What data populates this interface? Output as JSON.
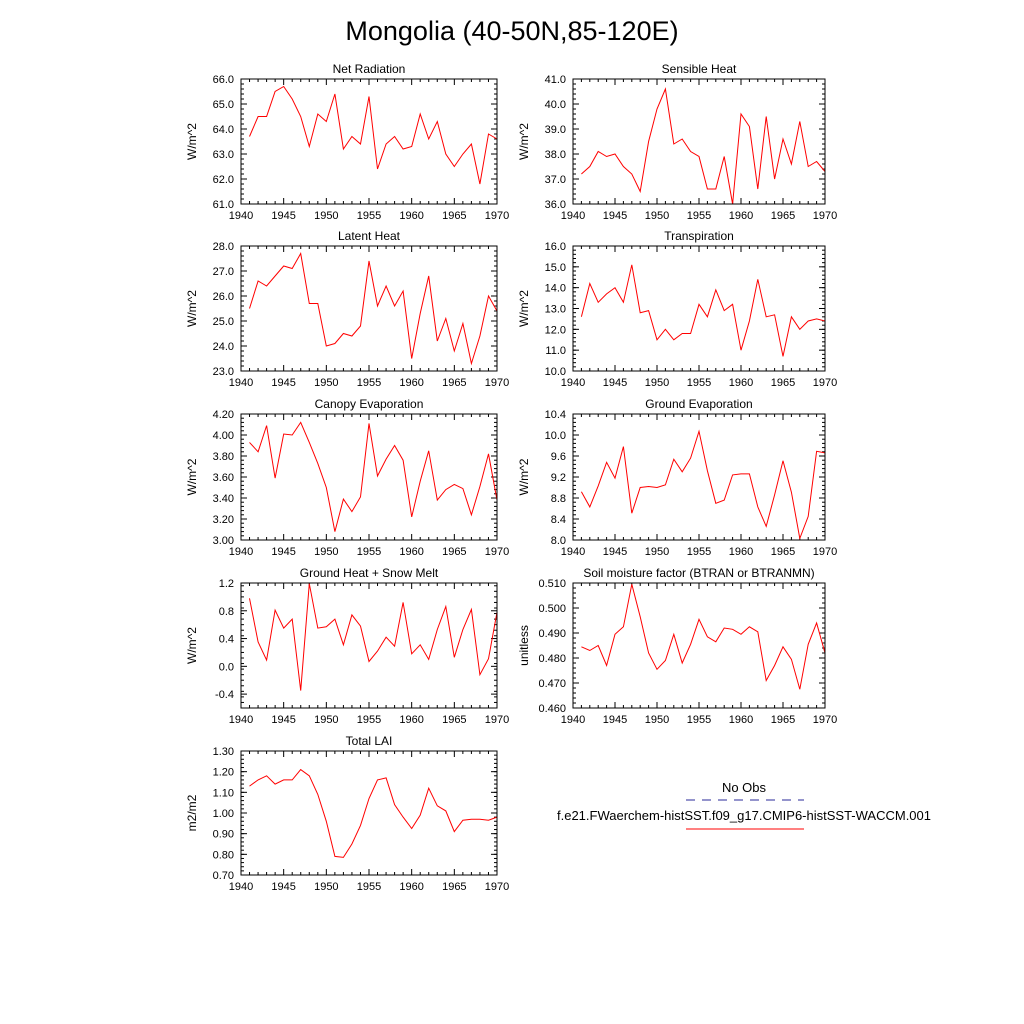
{
  "figure": {
    "title": "Mongolia (40-50N,85-120E)"
  },
  "legend": {
    "obs_label": "No Obs",
    "model_label": "f.e21.FWaerchem-histSST.f09_g17.CMIP6-histSST-WACCM.001",
    "obs_color": "#2a2a9a",
    "model_color": "#ff0000"
  },
  "chart_data": [
    {
      "type": "line",
      "title": "Net Radiation",
      "ylabel": "W/m^2",
      "xlim": [
        1940,
        1970
      ],
      "ylim": [
        61.0,
        66.0
      ],
      "xticks": [
        1940,
        1945,
        1950,
        1955,
        1960,
        1965,
        1970
      ],
      "yticks": [
        61.0,
        62.0,
        63.0,
        64.0,
        65.0,
        66.0
      ],
      "ytick_labels": [
        "61.0",
        "62.0",
        "63.0",
        "64.0",
        "65.0",
        "66.0"
      ],
      "minor_y": 0.2,
      "series": [
        {
          "color": "#ff0000",
          "x": [
            1941,
            1942,
            1943,
            1944,
            1945,
            1946,
            1947,
            1948,
            1949,
            1950,
            1951,
            1952,
            1953,
            1954,
            1955,
            1956,
            1957,
            1958,
            1959,
            1960,
            1961,
            1962,
            1963,
            1964,
            1965,
            1966,
            1967,
            1968,
            1969,
            1970
          ],
          "values": [
            63.7,
            64.5,
            64.5,
            65.5,
            65.7,
            65.2,
            64.5,
            63.3,
            64.6,
            64.3,
            65.4,
            63.2,
            63.7,
            63.4,
            65.3,
            62.4,
            63.4,
            63.7,
            63.2,
            63.3,
            64.6,
            63.6,
            64.3,
            63.0,
            62.5,
            63.0,
            63.4,
            61.8,
            63.8,
            63.6
          ]
        }
      ]
    },
    {
      "type": "line",
      "title": "Sensible Heat",
      "ylabel": "W/m^2",
      "xlim": [
        1940,
        1970
      ],
      "ylim": [
        36.0,
        41.0
      ],
      "xticks": [
        1940,
        1945,
        1950,
        1955,
        1960,
        1965,
        1970
      ],
      "yticks": [
        36.0,
        37.0,
        38.0,
        39.0,
        40.0,
        41.0
      ],
      "ytick_labels": [
        "36.0",
        "37.0",
        "38.0",
        "39.0",
        "40.0",
        "41.0"
      ],
      "minor_y": 0.2,
      "series": [
        {
          "color": "#ff0000",
          "x": [
            1941,
            1942,
            1943,
            1944,
            1945,
            1946,
            1947,
            1948,
            1949,
            1950,
            1951,
            1952,
            1953,
            1954,
            1955,
            1956,
            1957,
            1958,
            1959,
            1960,
            1961,
            1962,
            1963,
            1964,
            1965,
            1966,
            1967,
            1968,
            1969,
            1970
          ],
          "values": [
            37.2,
            37.5,
            38.1,
            37.9,
            38.0,
            37.5,
            37.2,
            36.5,
            38.5,
            39.8,
            40.6,
            38.4,
            38.6,
            38.1,
            37.9,
            36.6,
            36.6,
            37.9,
            36.0,
            39.6,
            39.1,
            36.6,
            39.5,
            37.0,
            38.6,
            37.6,
            39.3,
            37.5,
            37.7,
            37.3
          ]
        }
      ]
    },
    {
      "type": "line",
      "title": "Latent Heat",
      "ylabel": "W/m^2",
      "xlim": [
        1940,
        1970
      ],
      "ylim": [
        23.0,
        28.0
      ],
      "xticks": [
        1940,
        1945,
        1950,
        1955,
        1960,
        1965,
        1970
      ],
      "yticks": [
        23.0,
        24.0,
        25.0,
        26.0,
        27.0,
        28.0
      ],
      "ytick_labels": [
        "23.0",
        "24.0",
        "25.0",
        "26.0",
        "27.0",
        "28.0"
      ],
      "minor_y": 0.2,
      "series": [
        {
          "color": "#ff0000",
          "x": [
            1941,
            1942,
            1943,
            1944,
            1945,
            1946,
            1947,
            1948,
            1949,
            1950,
            1951,
            1952,
            1953,
            1954,
            1955,
            1956,
            1957,
            1958,
            1959,
            1960,
            1961,
            1962,
            1963,
            1964,
            1965,
            1966,
            1967,
            1968,
            1969,
            1970
          ],
          "values": [
            25.5,
            26.6,
            26.4,
            26.8,
            27.2,
            27.1,
            27.7,
            25.7,
            25.7,
            24.0,
            24.1,
            24.5,
            24.4,
            24.8,
            27.4,
            25.6,
            26.4,
            25.6,
            26.2,
            23.5,
            25.3,
            26.8,
            24.2,
            25.1,
            23.8,
            24.9,
            23.3,
            24.4,
            26.0,
            25.4
          ]
        }
      ]
    },
    {
      "type": "line",
      "title": "Transpiration",
      "ylabel": "W/m^2",
      "xlim": [
        1940,
        1970
      ],
      "ylim": [
        10.0,
        16.0
      ],
      "xticks": [
        1940,
        1945,
        1950,
        1955,
        1960,
        1965,
        1970
      ],
      "yticks": [
        10.0,
        11.0,
        12.0,
        13.0,
        14.0,
        15.0,
        16.0
      ],
      "ytick_labels": [
        "10.0",
        "11.0",
        "12.0",
        "13.0",
        "14.0",
        "15.0",
        "16.0"
      ],
      "minor_y": 0.2,
      "series": [
        {
          "color": "#ff0000",
          "x": [
            1941,
            1942,
            1943,
            1944,
            1945,
            1946,
            1947,
            1948,
            1949,
            1950,
            1951,
            1952,
            1953,
            1954,
            1955,
            1956,
            1957,
            1958,
            1959,
            1960,
            1961,
            1962,
            1963,
            1964,
            1965,
            1966,
            1967,
            1968,
            1969,
            1970
          ],
          "values": [
            12.6,
            14.2,
            13.3,
            13.7,
            14.0,
            13.3,
            15.1,
            12.8,
            12.9,
            11.5,
            12.0,
            11.5,
            11.8,
            11.8,
            13.2,
            12.6,
            13.9,
            12.9,
            13.2,
            11.0,
            12.4,
            14.4,
            12.6,
            12.7,
            10.7,
            12.6,
            12.0,
            12.4,
            12.5,
            12.4
          ]
        }
      ]
    },
    {
      "type": "line",
      "title": "Canopy Evaporation",
      "ylabel": "W/m^2",
      "xlim": [
        1940,
        1970
      ],
      "ylim": [
        3.0,
        4.2
      ],
      "xticks": [
        1940,
        1945,
        1950,
        1955,
        1960,
        1965,
        1970
      ],
      "yticks": [
        3.0,
        3.2,
        3.4,
        3.6,
        3.8,
        4.0,
        4.2
      ],
      "ytick_labels": [
        "3.00",
        "3.20",
        "3.40",
        "3.60",
        "3.80",
        "4.00",
        "4.20"
      ],
      "minor_y": 0.04,
      "series": [
        {
          "color": "#ff0000",
          "x": [
            1941,
            1942,
            1943,
            1944,
            1945,
            1946,
            1947,
            1948,
            1949,
            1950,
            1951,
            1952,
            1953,
            1954,
            1955,
            1956,
            1957,
            1958,
            1959,
            1960,
            1961,
            1962,
            1963,
            1964,
            1965,
            1966,
            1967,
            1968,
            1969,
            1970
          ],
          "values": [
            3.93,
            3.84,
            4.09,
            3.59,
            4.01,
            4.0,
            4.12,
            3.93,
            3.73,
            3.5,
            3.08,
            3.39,
            3.27,
            3.41,
            4.11,
            3.61,
            3.77,
            3.9,
            3.76,
            3.22,
            3.56,
            3.85,
            3.38,
            3.48,
            3.53,
            3.49,
            3.24,
            3.51,
            3.82,
            3.38
          ]
        }
      ]
    },
    {
      "type": "line",
      "title": "Ground Evaporation",
      "ylabel": "W/m^2",
      "xlim": [
        1940,
        1970
      ],
      "ylim": [
        8.0,
        10.4
      ],
      "xticks": [
        1940,
        1945,
        1950,
        1955,
        1960,
        1965,
        1970
      ],
      "yticks": [
        8.0,
        8.4,
        8.8,
        9.2,
        9.6,
        10.0,
        10.4
      ],
      "ytick_labels": [
        "8.0",
        "8.4",
        "8.8",
        "9.2",
        "9.6",
        "10.0",
        "10.4"
      ],
      "minor_y": 0.08,
      "series": [
        {
          "color": "#ff0000",
          "x": [
            1941,
            1942,
            1943,
            1944,
            1945,
            1946,
            1947,
            1948,
            1949,
            1950,
            1951,
            1952,
            1953,
            1954,
            1955,
            1956,
            1957,
            1958,
            1959,
            1960,
            1961,
            1962,
            1963,
            1964,
            1965,
            1966,
            1967,
            1968,
            1969,
            1970
          ],
          "values": [
            8.92,
            8.63,
            9.03,
            9.48,
            9.18,
            9.78,
            8.51,
            9.0,
            9.02,
            9.0,
            9.05,
            9.54,
            9.3,
            9.56,
            10.07,
            9.32,
            8.7,
            8.76,
            9.24,
            9.26,
            9.26,
            8.63,
            8.26,
            8.86,
            9.51,
            8.91,
            8.03,
            8.45,
            9.69,
            9.66
          ]
        }
      ]
    },
    {
      "type": "line",
      "title": "Ground Heat + Snow Melt",
      "ylabel": "W/m^2",
      "xlim": [
        1940,
        1970
      ],
      "ylim": [
        -0.6,
        1.2
      ],
      "xticks": [
        1940,
        1945,
        1950,
        1955,
        1960,
        1965,
        1970
      ],
      "yticks": [
        -0.4,
        0.0,
        0.4,
        0.8,
        1.2
      ],
      "ytick_labels": [
        "-0.4",
        "0.0",
        "0.4",
        "0.8",
        "1.2"
      ],
      "minor_y": 0.08,
      "series": [
        {
          "color": "#ff0000",
          "x": [
            1941,
            1942,
            1943,
            1944,
            1945,
            1946,
            1947,
            1948,
            1949,
            1950,
            1951,
            1952,
            1953,
            1954,
            1955,
            1956,
            1957,
            1958,
            1959,
            1960,
            1961,
            1962,
            1963,
            1964,
            1965,
            1966,
            1967,
            1968,
            1969,
            1970
          ],
          "values": [
            0.98,
            0.35,
            0.09,
            0.81,
            0.55,
            0.68,
            -0.35,
            1.19,
            0.55,
            0.57,
            0.68,
            0.31,
            0.74,
            0.58,
            0.07,
            0.22,
            0.42,
            0.29,
            0.92,
            0.18,
            0.31,
            0.1,
            0.53,
            0.86,
            0.13,
            0.53,
            0.82,
            -0.12,
            0.11,
            0.78
          ]
        }
      ]
    },
    {
      "type": "line",
      "title": "Soil moisture factor (BTRAN or BTRANMN)",
      "ylabel": "unitless",
      "xlim": [
        1940,
        1970
      ],
      "ylim": [
        0.46,
        0.51
      ],
      "xticks": [
        1940,
        1945,
        1950,
        1955,
        1960,
        1965,
        1970
      ],
      "yticks": [
        0.46,
        0.47,
        0.48,
        0.49,
        0.5,
        0.51
      ],
      "ytick_labels": [
        "0.460",
        "0.470",
        "0.480",
        "0.490",
        "0.500",
        "0.510"
      ],
      "minor_y": 0.002,
      "series": [
        {
          "color": "#ff0000",
          "x": [
            1941,
            1942,
            1943,
            1944,
            1945,
            1946,
            1947,
            1948,
            1949,
            1950,
            1951,
            1952,
            1953,
            1954,
            1955,
            1956,
            1957,
            1958,
            1959,
            1960,
            1961,
            1962,
            1963,
            1964,
            1965,
            1966,
            1967,
            1968,
            1969,
            1970
          ],
          "values": [
            0.4845,
            0.483,
            0.485,
            0.477,
            0.4895,
            0.4925,
            0.5095,
            0.4965,
            0.482,
            0.4755,
            0.479,
            0.4895,
            0.478,
            0.4855,
            0.4955,
            0.4885,
            0.4865,
            0.492,
            0.4915,
            0.4895,
            0.4925,
            0.4905,
            0.471,
            0.477,
            0.4845,
            0.4795,
            0.4675,
            0.4855,
            0.494,
            0.482
          ]
        }
      ]
    },
    {
      "type": "line",
      "title": "Total LAI",
      "ylabel": "m2/m2",
      "xlim": [
        1940,
        1970
      ],
      "ylim": [
        0.7,
        1.3
      ],
      "xticks": [
        1940,
        1945,
        1950,
        1955,
        1960,
        1965,
        1970
      ],
      "yticks": [
        0.7,
        0.8,
        0.9,
        1.0,
        1.1,
        1.2,
        1.3
      ],
      "ytick_labels": [
        "0.70",
        "0.80",
        "0.90",
        "1.00",
        "1.10",
        "1.20",
        "1.30"
      ],
      "minor_y": 0.02,
      "series": [
        {
          "color": "#ff0000",
          "x": [
            1941,
            1942,
            1943,
            1944,
            1945,
            1946,
            1947,
            1948,
            1949,
            1950,
            1951,
            1952,
            1953,
            1954,
            1955,
            1956,
            1957,
            1958,
            1959,
            1960,
            1961,
            1962,
            1963,
            1964,
            1965,
            1966,
            1967,
            1968,
            1969,
            1970
          ],
          "values": [
            1.13,
            1.16,
            1.18,
            1.14,
            1.16,
            1.16,
            1.21,
            1.18,
            1.09,
            0.96,
            0.79,
            0.785,
            0.85,
            0.94,
            1.07,
            1.16,
            1.17,
            1.04,
            0.98,
            0.925,
            0.99,
            1.12,
            1.035,
            1.01,
            0.91,
            0.965,
            0.97,
            0.97,
            0.965,
            0.98
          ]
        }
      ]
    }
  ]
}
